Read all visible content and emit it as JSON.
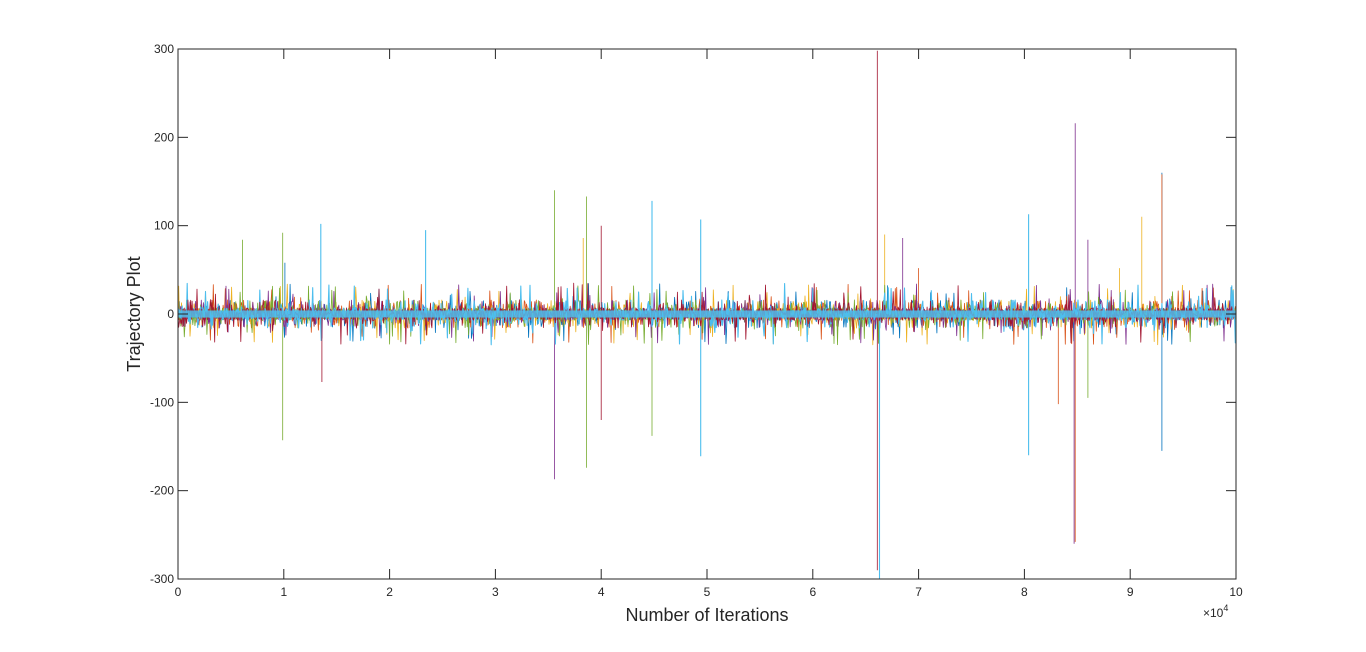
{
  "chart_data": {
    "type": "line",
    "title": "",
    "xlabel": "Number of Iterations",
    "ylabel": "Trajectory Plot",
    "x_exponent_label": "×10",
    "x_exponent_power": "4",
    "x_scale": 10000,
    "xlim": [
      0,
      100000
    ],
    "ylim": [
      -300,
      300
    ],
    "xticks": [
      0,
      10000,
      20000,
      30000,
      40000,
      50000,
      60000,
      70000,
      80000,
      90000,
      100000
    ],
    "xtick_labels": [
      "0",
      "1",
      "2",
      "3",
      "4",
      "5",
      "6",
      "7",
      "8",
      "9",
      "10"
    ],
    "yticks": [
      300,
      200,
      100,
      0,
      -100,
      -200,
      -300
    ],
    "ytick_labels": [
      "300",
      "200",
      "100",
      "0",
      "-100",
      "-200",
      "-300"
    ],
    "grid": false,
    "legend": "none",
    "series": [
      {
        "color": "#0072BD",
        "spikes": [
          [
            93000,
            160
          ],
          [
            93000,
            -155
          ],
          [
            10100,
            58
          ]
        ]
      },
      {
        "color": "#D95319",
        "spikes": [
          [
            93000,
            158
          ],
          [
            84800,
            -258
          ],
          [
            83200,
            -102
          ],
          [
            70000,
            52
          ]
        ]
      },
      {
        "color": "#EDB120",
        "spikes": [
          [
            38300,
            86
          ],
          [
            91100,
            110
          ],
          [
            66800,
            90
          ],
          [
            89000,
            52
          ]
        ]
      },
      {
        "color": "#7E2F8E",
        "spikes": [
          [
            84800,
            216
          ],
          [
            84700,
            -260
          ],
          [
            35600,
            -187
          ],
          [
            68500,
            86
          ],
          [
            86000,
            84
          ]
        ]
      },
      {
        "color": "#77AC30",
        "spikes": [
          [
            35600,
            140
          ],
          [
            38600,
            133
          ],
          [
            9900,
            92
          ],
          [
            9900,
            -143
          ],
          [
            6100,
            84
          ],
          [
            44800,
            -138
          ],
          [
            38600,
            -174
          ],
          [
            86000,
            -95
          ]
        ]
      },
      {
        "color": "#4DBEEE",
        "spikes": [
          [
            66300,
            -300
          ],
          [
            44800,
            128
          ],
          [
            49400,
            107
          ],
          [
            13500,
            102
          ],
          [
            23400,
            95
          ],
          [
            80400,
            113
          ],
          [
            80400,
            -160
          ],
          [
            49400,
            -161
          ]
        ]
      },
      {
        "color": "#A2142F",
        "spikes": [
          [
            66100,
            298
          ],
          [
            66100,
            -290
          ],
          [
            40000,
            100
          ],
          [
            40000,
            -120
          ],
          [
            13600,
            -77
          ]
        ]
      }
    ]
  }
}
